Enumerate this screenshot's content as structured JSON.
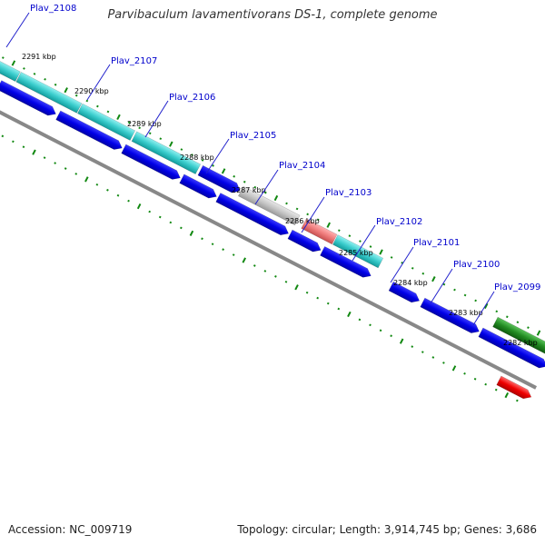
{
  "title": "Parvibaculum lavamentivorans DS-1, complete genome",
  "accession_text": "Accession: NC_009719",
  "topology_text": "Topology: circular; Length: 3,914,745 bp; Genes: 3,686",
  "colors": {
    "gene_blue": "#0000dd",
    "gene_cyan": "#33c9c9",
    "gene_grey": "#c0c0c0",
    "gene_pink": "#ee7d7d",
    "gene_green": "#1e8a1e",
    "gene_red": "#ee0000",
    "backbone": "#888888",
    "tick_green": "#118811",
    "label_blue": "#0000cc",
    "label_line": "#2222cc"
  },
  "kbp_labels": [
    "2291 kbp",
    "2290 kbp",
    "2289 kbp",
    "2288 kbp",
    "2287 kbp",
    "2286 kbp",
    "2285 kbp",
    "2284 kbp",
    "2283 kbp",
    "2282 kbp"
  ],
  "gene_labels": [
    "Plav_2108",
    "Plav_2107",
    "Plav_2106",
    "Plav_2105",
    "Plav_2104",
    "Plav_2103",
    "Plav_2102",
    "Plav_2101",
    "Plav_2100",
    "Plav_2099"
  ]
}
